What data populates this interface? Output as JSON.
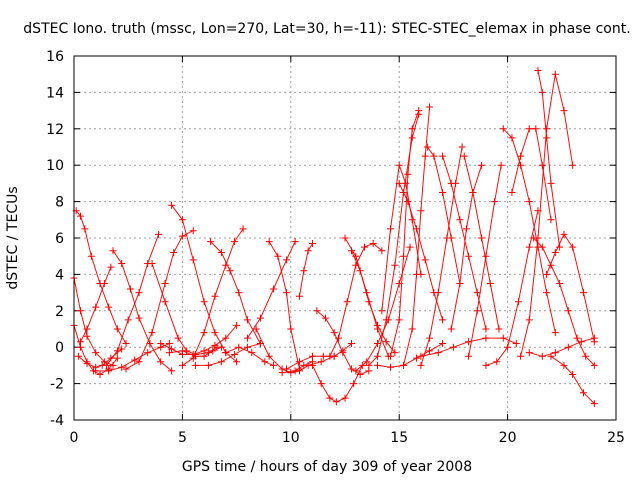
{
  "chart_data": {
    "type": "scatter",
    "title": "dSTEC Iono. truth (mssc, Lon=270, Lat=30, h=-11): STEC-STEC_elemax in phase cont.",
    "xlabel": "GPS time / hours of day 309 of year 2008",
    "ylabel": "dSTEC  / TECUs",
    "xlim": [
      0,
      25
    ],
    "ylim": [
      -4,
      16
    ],
    "xticks": [
      0,
      5,
      10,
      15,
      20,
      25
    ],
    "yticks": [
      -4,
      -2,
      0,
      2,
      4,
      6,
      8,
      10,
      12,
      14,
      16
    ],
    "xtick_labels": [
      "0",
      "5",
      "10",
      "15",
      "20",
      "25"
    ],
    "ytick_labels": [
      "-4",
      "-2",
      "0",
      "2",
      "4",
      "6",
      "8",
      "10",
      "12",
      "14",
      "16"
    ],
    "grid": true,
    "legend": "none",
    "marker": "plus",
    "series_color": "#ff0000",
    "series": [
      {
        "x": [
          0.0,
          0.3,
          0.6,
          0.9,
          1.2,
          1.6,
          2.0
        ],
        "y": [
          1.2,
          0.0,
          -0.8,
          -1.3,
          -1.5,
          -1.2,
          -0.6
        ]
      },
      {
        "x": [
          0.0,
          0.3,
          0.6,
          1.0,
          1.4,
          1.8
        ],
        "y": [
          3.8,
          2.0,
          0.6,
          -0.3,
          -0.8,
          -1.0
        ]
      },
      {
        "x": [
          0.1,
          0.3,
          0.5,
          0.8,
          1.2,
          1.6,
          2.0,
          2.4
        ],
        "y": [
          7.5,
          7.2,
          6.5,
          5.0,
          3.5,
          2.2,
          1.0,
          0.2
        ]
      },
      {
        "x": [
          0.3,
          0.6,
          1.0,
          1.4,
          1.7
        ],
        "y": [
          0.3,
          1.0,
          2.2,
          3.5,
          4.4
        ]
      },
      {
        "x": [
          0.2,
          0.6,
          1.0,
          1.3,
          1.7,
          2.2
        ],
        "y": [
          -0.5,
          -0.9,
          -1.1,
          -1.0,
          -0.6,
          -0.1
        ]
      },
      {
        "x": [
          1.8,
          2.2,
          2.6,
          3.0,
          3.5,
          4.0,
          4.5
        ],
        "y": [
          5.3,
          4.6,
          3.2,
          1.6,
          0.2,
          -0.8,
          -1.3
        ]
      },
      {
        "x": [
          1.5,
          2.0,
          2.5,
          3.0,
          3.4,
          3.9
        ],
        "y": [
          -1.0,
          -0.2,
          1.5,
          3.0,
          4.6,
          6.2
        ]
      },
      {
        "x": [
          2.4,
          3.0,
          3.6,
          4.2,
          4.6,
          5.0,
          5.5
        ],
        "y": [
          -1.2,
          -0.8,
          0.8,
          3.5,
          5.2,
          6.1,
          6.4
        ]
      },
      {
        "x": [
          1.0,
          1.6,
          2.2,
          2.8,
          3.4,
          4.0,
          4.4
        ],
        "y": [
          -1.3,
          -1.3,
          -1.1,
          -0.7,
          -0.3,
          0.0,
          0.2
        ]
      },
      {
        "x": [
          4.5,
          5.0,
          5.5,
          6.0,
          6.5,
          7.0,
          7.5
        ],
        "y": [
          7.8,
          7.0,
          4.8,
          2.5,
          0.8,
          -0.3,
          -0.8
        ]
      },
      {
        "x": [
          3.6,
          4.2,
          4.8,
          5.2,
          5.6,
          6.2,
          6.6
        ],
        "y": [
          4.6,
          2.5,
          0.5,
          -0.2,
          -0.4,
          -0.3,
          0.0
        ]
      },
      {
        "x": [
          4.0,
          4.5,
          5.0,
          5.5,
          6.0,
          6.5,
          7.0,
          7.5
        ],
        "y": [
          0.2,
          -0.1,
          -0.4,
          -0.4,
          -0.2,
          0.1,
          0.5,
          1.2
        ]
      },
      {
        "x": [
          5.0,
          5.5,
          6.0,
          6.5,
          7.0,
          7.4,
          7.8
        ],
        "y": [
          -1.0,
          -0.6,
          0.8,
          2.8,
          4.5,
          5.8,
          6.5
        ]
      },
      {
        "x": [
          4.4,
          5.0,
          5.6,
          6.0,
          6.4,
          6.8
        ],
        "y": [
          -0.3,
          -0.2,
          -0.5,
          -0.5,
          -0.2,
          0.0
        ]
      },
      {
        "x": [
          6.3,
          6.8,
          7.2,
          7.6,
          8.0,
          8.6
        ],
        "y": [
          5.8,
          5.2,
          4.2,
          3.0,
          1.5,
          0.2
        ]
      },
      {
        "x": [
          5.6,
          6.2,
          6.8,
          7.4,
          8.0,
          8.6
        ],
        "y": [
          -1.0,
          -1.0,
          -0.8,
          -0.4,
          0.0,
          0.2
        ]
      },
      {
        "x": [
          7.0,
          7.6,
          8.2,
          8.8,
          9.2
        ],
        "y": [
          -0.3,
          0.0,
          -0.3,
          -0.8,
          -1.0
        ]
      },
      {
        "x": [
          8.0,
          8.6,
          9.2,
          9.8,
          10.2
        ],
        "y": [
          0.5,
          1.6,
          3.2,
          4.8,
          5.8
        ]
      },
      {
        "x": [
          9.0,
          9.4,
          9.8,
          10.0,
          10.4
        ],
        "y": [
          5.8,
          5.0,
          3.0,
          1.0,
          -1.2
        ]
      },
      {
        "x": [
          8.4,
          9.0,
          9.6,
          10.0,
          10.4,
          10.8,
          11.4,
          12.0
        ],
        "y": [
          1.0,
          -0.5,
          -1.2,
          -1.4,
          -1.3,
          -1.0,
          -0.8,
          -0.5
        ]
      },
      {
        "x": [
          9.6,
          10.2,
          10.6,
          11.0
        ],
        "y": [
          -1.4,
          -1.3,
          -1.0,
          -0.8
        ]
      },
      {
        "x": [
          10.4,
          10.6,
          10.8,
          11.0
        ],
        "y": [
          2.8,
          4.2,
          5.3,
          5.7
        ]
      },
      {
        "x": [
          9.8,
          10.4,
          11.0,
          11.5,
          12.0,
          12.4,
          12.8
        ],
        "y": [
          -1.2,
          -0.8,
          -0.5,
          -0.5,
          -0.5,
          -0.2,
          0.2
        ]
      },
      {
        "x": [
          11.0,
          11.4,
          11.8,
          12.1,
          12.5,
          12.9,
          13.3
        ],
        "y": [
          -1.0,
          -2.0,
          -2.8,
          -3.0,
          -2.8,
          -2.0,
          -1.0
        ]
      },
      {
        "x": [
          11.2,
          11.6,
          12.0,
          12.4,
          12.8,
          13.2,
          13.6
        ],
        "y": [
          2.0,
          1.6,
          0.8,
          -0.3,
          -1.2,
          -1.5,
          -1.3
        ]
      },
      {
        "x": [
          11.8,
          12.2,
          12.6,
          13.0,
          13.4,
          13.8,
          14.2
        ],
        "y": [
          -0.5,
          0.5,
          2.5,
          4.5,
          5.5,
          5.7,
          5.3
        ]
      },
      {
        "x": [
          12.5,
          13.0,
          13.5,
          14.0,
          14.5
        ],
        "y": [
          6.0,
          5.0,
          3.0,
          1.0,
          -0.5
        ]
      },
      {
        "x": [
          12.8,
          13.2,
          13.6,
          14.0,
          14.4,
          14.8
        ],
        "y": [
          5.3,
          4.2,
          2.5,
          1.2,
          0.3,
          -0.3
        ]
      },
      {
        "x": [
          13.0,
          13.5,
          14.0,
          14.5,
          15.0,
          15.5
        ],
        "y": [
          -1.3,
          -0.8,
          0.2,
          1.5,
          3.5,
          5.5
        ]
      },
      {
        "x": [
          14.2,
          14.6,
          15.0,
          15.3,
          15.6,
          16.0
        ],
        "y": [
          2.0,
          6.5,
          10.0,
          9.0,
          7.0,
          4.0
        ]
      },
      {
        "x": [
          13.6,
          14.0,
          14.4,
          14.8,
          15.2,
          15.6,
          15.9
        ],
        "y": [
          -1.0,
          -0.5,
          1.5,
          4.5,
          8.5,
          11.5,
          12.8
        ]
      },
      {
        "x": [
          14.6,
          15.0,
          15.2,
          15.4,
          15.6,
          15.9
        ],
        "y": [
          -0.5,
          1.5,
          5.0,
          9.5,
          12.0,
          13.0
        ]
      },
      {
        "x": [
          15.2,
          15.6,
          15.8,
          16.0,
          16.2,
          16.4
        ],
        "y": [
          -1.0,
          1.0,
          4.0,
          7.5,
          10.5,
          13.2
        ]
      },
      {
        "x": [
          15.0,
          15.4,
          15.8,
          16.2,
          16.6,
          17.0
        ],
        "y": [
          9.0,
          8.0,
          6.5,
          4.8,
          3.0,
          1.5
        ]
      },
      {
        "x": [
          16.3,
          16.6,
          17.0,
          17.4,
          17.8
        ],
        "y": [
          11.0,
          10.5,
          8.5,
          6.0,
          3.5
        ]
      },
      {
        "x": [
          16.0,
          16.4,
          16.8,
          17.2,
          17.6,
          17.9
        ],
        "y": [
          -1.0,
          0.5,
          3.0,
          6.0,
          9.0,
          11.0
        ]
      },
      {
        "x": [
          17.0,
          17.4,
          17.8,
          18.2,
          18.6,
          19.0
        ],
        "y": [
          10.5,
          9.0,
          7.0,
          5.0,
          3.0,
          1.0
        ]
      },
      {
        "x": [
          17.4,
          17.8,
          18.1,
          18.4,
          18.8
        ],
        "y": [
          1.0,
          3.5,
          6.5,
          8.5,
          10.0
        ]
      },
      {
        "x": [
          18.0,
          18.4,
          18.8,
          19.2,
          19.6
        ],
        "y": [
          10.5,
          8.5,
          6.0,
          3.5,
          1.0
        ]
      },
      {
        "x": [
          18.2,
          18.6,
          19.0,
          19.4,
          19.7
        ],
        "y": [
          -0.5,
          2.0,
          5.0,
          8.0,
          10.0
        ]
      },
      {
        "x": [
          16.0,
          16.8,
          17.5,
          18.2,
          19.0,
          19.8,
          20.4
        ],
        "y": [
          -0.5,
          -0.3,
          0.0,
          0.3,
          0.5,
          0.5,
          0.2
        ]
      },
      {
        "x": [
          19.0,
          19.5,
          20.0,
          20.5,
          21.0,
          21.4
        ],
        "y": [
          -1.0,
          -0.8,
          0.0,
          2.5,
          5.5,
          7.5
        ]
      },
      {
        "x": [
          19.8,
          20.2,
          20.6,
          21.0,
          21.4,
          21.8,
          22.2
        ],
        "y": [
          12.0,
          11.5,
          10.0,
          8.0,
          5.5,
          3.0,
          0.8
        ]
      },
      {
        "x": [
          20.2,
          20.6,
          21.0,
          21.3,
          21.6,
          22.0
        ],
        "y": [
          8.5,
          10.5,
          12.0,
          12.0,
          10.0,
          7.0
        ]
      },
      {
        "x": [
          20.6,
          21.0,
          21.4,
          21.8,
          22.2,
          22.6,
          23.0
        ],
        "y": [
          -0.5,
          1.5,
          6.0,
          12.0,
          15.0,
          13.0,
          10.0
        ]
      },
      {
        "x": [
          21.4,
          21.6,
          21.8,
          22.0,
          22.4
        ],
        "y": [
          15.2,
          14.0,
          11.5,
          9.0,
          5.5
        ]
      },
      {
        "x": [
          21.2,
          21.6,
          22.0,
          22.4,
          22.8,
          23.2,
          23.6,
          24.0
        ],
        "y": [
          6.0,
          5.5,
          4.5,
          3.5,
          2.0,
          0.5,
          -0.5,
          -1.0
        ]
      },
      {
        "x": [
          21.8,
          22.2,
          22.6,
          23.0,
          23.5,
          24.0
        ],
        "y": [
          4.0,
          5.2,
          6.2,
          5.5,
          3.0,
          0.3
        ]
      },
      {
        "x": [
          22.0,
          22.6,
          23.0,
          23.5,
          24.0
        ],
        "y": [
          -0.5,
          -1.0,
          -1.5,
          -2.5,
          -3.1
        ]
      },
      {
        "x": [
          21.0,
          21.6,
          22.2,
          22.8,
          23.4,
          24.0
        ],
        "y": [
          -0.3,
          -0.5,
          -0.3,
          0.0,
          0.3,
          0.5
        ]
      },
      {
        "x": [
          14.0,
          14.6,
          15.2,
          15.8,
          16.4,
          17.0
        ],
        "y": [
          -1.0,
          -1.1,
          -1.0,
          -0.6,
          -0.2,
          0.2
        ]
      }
    ]
  }
}
